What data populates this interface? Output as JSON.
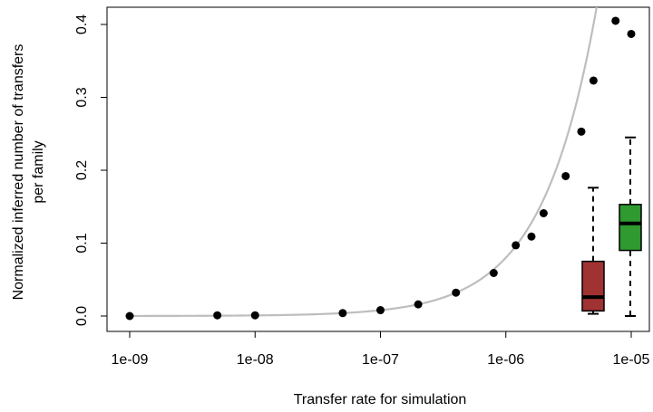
{
  "chart_data": {
    "type": "scatter",
    "title": "",
    "xlabel": "Transfer rate for simulation",
    "ylabel_lines": [
      "Normalized inferred number of transfers",
      "per family"
    ],
    "x_scale": "log10",
    "xlim": [
      1e-09,
      1e-05
    ],
    "ylim": [
      0,
      0.4
    ],
    "x_ticks": [
      {
        "value": 1e-09,
        "label": "1e-09"
      },
      {
        "value": 1e-08,
        "label": "1e-08"
      },
      {
        "value": 1e-07,
        "label": "1e-07"
      },
      {
        "value": 1e-06,
        "label": "1e-06"
      },
      {
        "value": 1e-05,
        "label": "1e-05"
      }
    ],
    "y_ticks": [
      {
        "value": 0.0,
        "label": "0.0"
      },
      {
        "value": 0.1,
        "label": "0.1"
      },
      {
        "value": 0.2,
        "label": "0.2"
      },
      {
        "value": 0.3,
        "label": "0.3"
      },
      {
        "value": 0.4,
        "label": "0.4"
      }
    ],
    "points": [
      {
        "x": 1e-09,
        "y": 0.0
      },
      {
        "x": 5e-09,
        "y": 0.001
      },
      {
        "x": 1e-08,
        "y": 0.001
      },
      {
        "x": 5e-08,
        "y": 0.004
      },
      {
        "x": 1e-07,
        "y": 0.008
      },
      {
        "x": 2e-07,
        "y": 0.016
      },
      {
        "x": 4e-07,
        "y": 0.032
      },
      {
        "x": 8e-07,
        "y": 0.059
      },
      {
        "x": 1.2e-06,
        "y": 0.097
      },
      {
        "x": 1.6e-06,
        "y": 0.109
      },
      {
        "x": 2e-06,
        "y": 0.141
      },
      {
        "x": 3e-06,
        "y": 0.192
      },
      {
        "x": 4e-06,
        "y": 0.253
      },
      {
        "x": 5e-06,
        "y": 0.323
      },
      {
        "x": 7.5e-06,
        "y": 0.405
      },
      {
        "x": 1e-05,
        "y": 0.387
      }
    ],
    "fit_curve": {
      "color": "#bebebe",
      "slope": 80000
    },
    "boxplots": [
      {
        "x": 5e-06,
        "min": 0.003,
        "q1": 0.007,
        "median": 0.026,
        "q3": 0.075,
        "max": 0.176,
        "color": "#a03232"
      },
      {
        "x": 1e-05,
        "min": 0.0,
        "q1": 0.09,
        "median": 0.127,
        "q3": 0.153,
        "max": 0.245,
        "color": "#2e9a30"
      }
    ]
  }
}
